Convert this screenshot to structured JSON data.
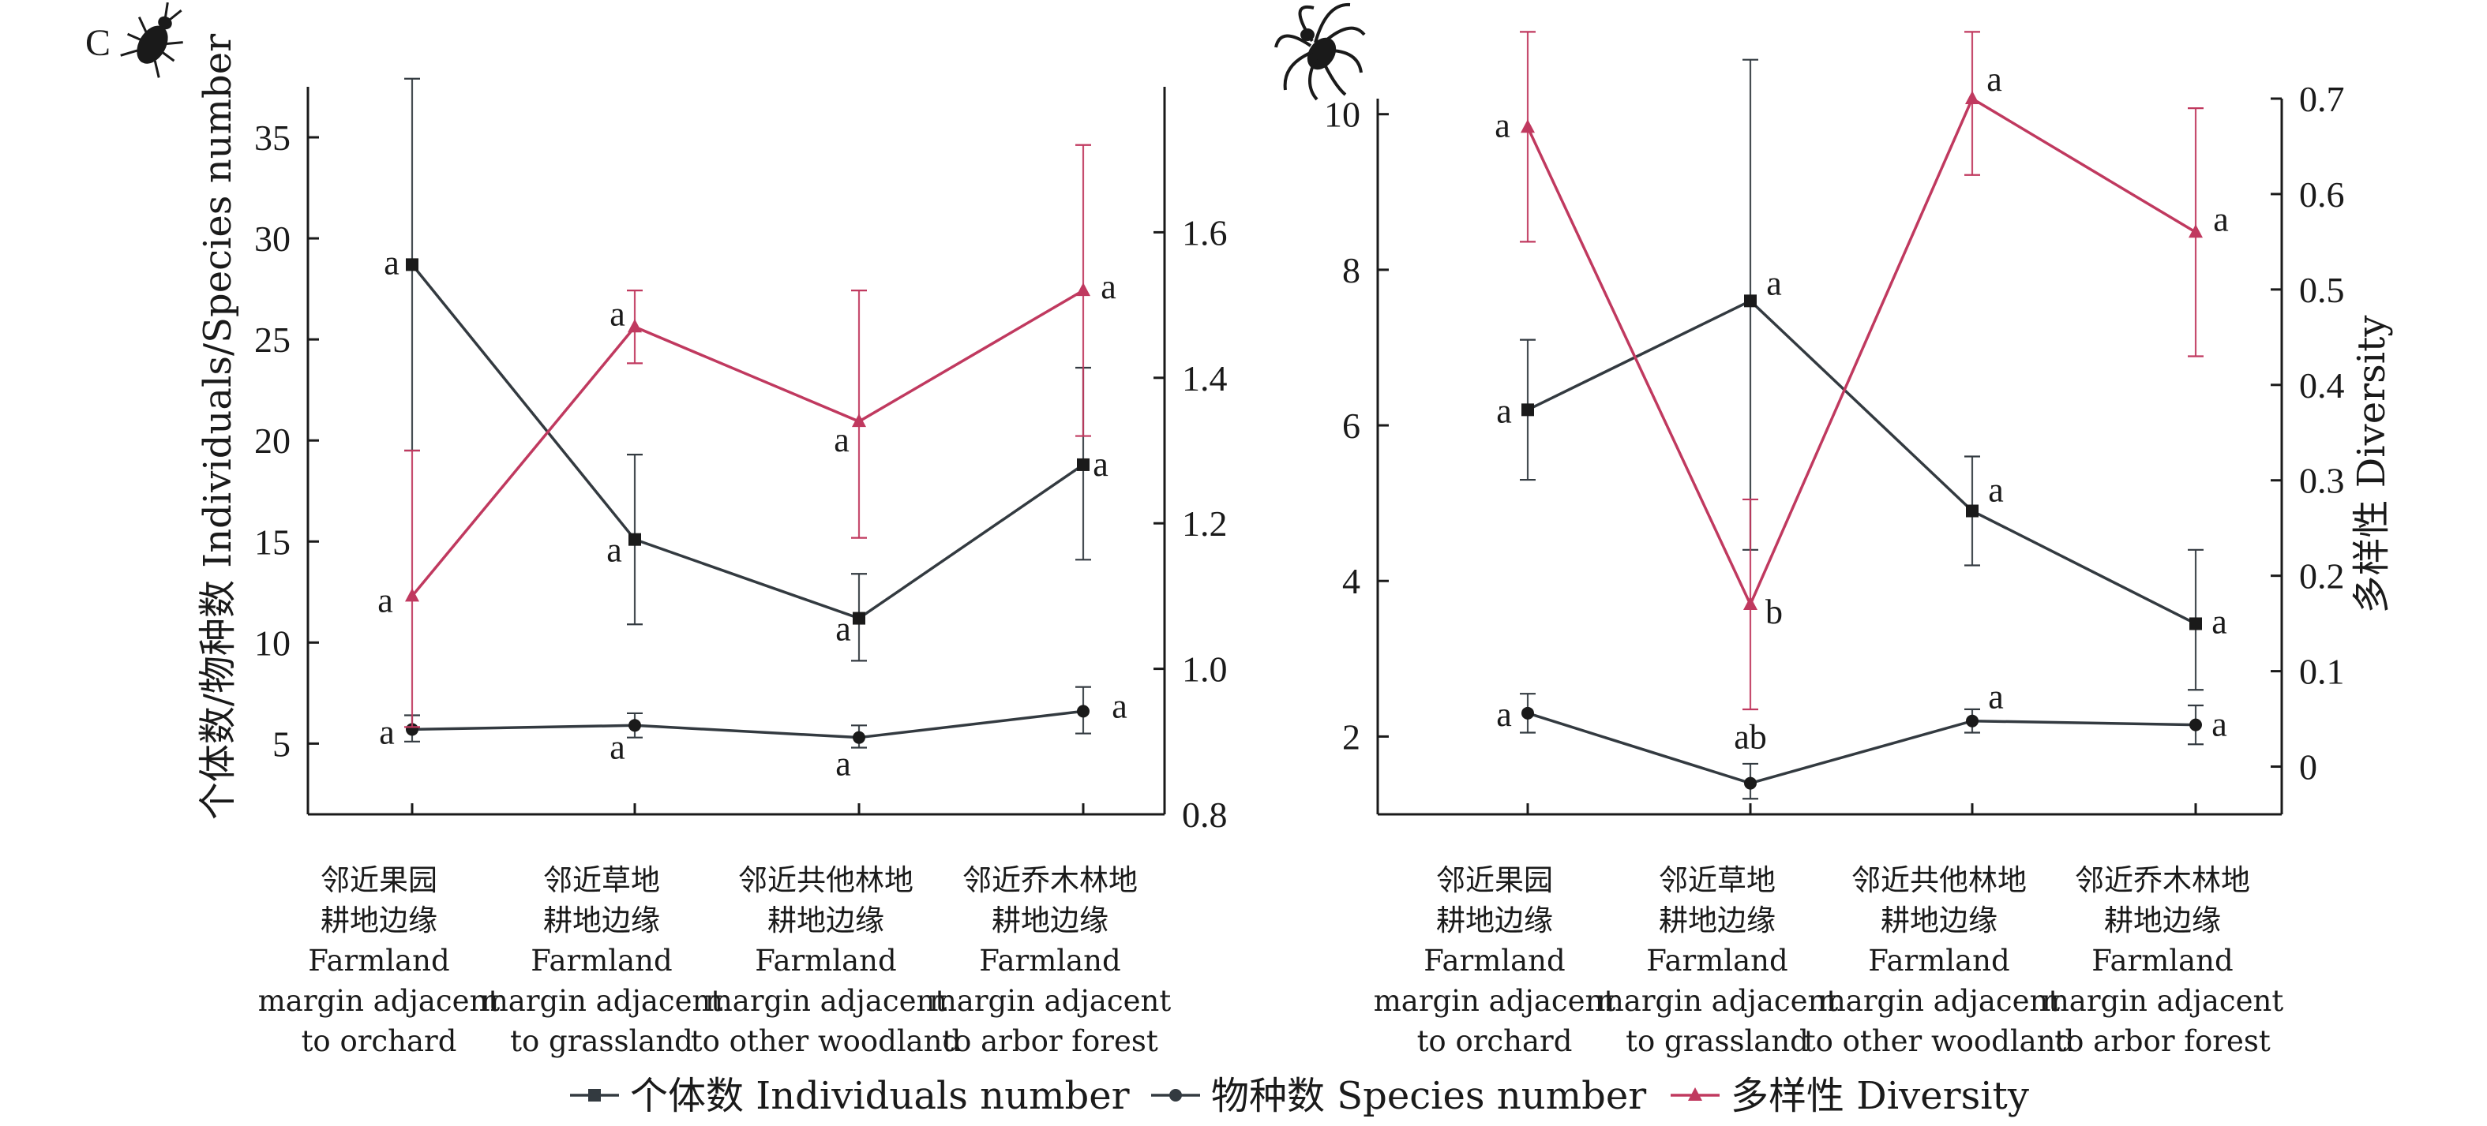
{
  "panel_letter": "C",
  "legend": [
    {
      "label": "个体数 Individuals number",
      "color": "#333a40",
      "marker": "square"
    },
    {
      "label": "物种数 Species number",
      "color": "#333a40",
      "marker": "circle"
    },
    {
      "label": "多样性 Diversity",
      "color": "#c0395f",
      "marker": "triangle"
    }
  ],
  "categories": [
    [
      "邻近果园",
      "耕地边缘",
      "Farmland",
      "margin adjacent",
      "to orchard"
    ],
    [
      "邻近草地",
      "耕地边缘",
      "Farmland",
      "margin adjacent",
      "to grassland"
    ],
    [
      "邻近共他林地",
      "耕地边缘",
      "Farmland",
      "margin adjacent",
      "to other woodland"
    ],
    [
      "邻近乔木林地",
      "耕地边缘",
      "Farmland",
      "margin adjacent",
      "to arbor forest"
    ]
  ],
  "chart_data": [
    {
      "type": "line",
      "icon": "beetle-icon",
      "ylabel": "个体数/物种数 Individuals/Species number",
      "y2label": "",
      "ylim": [
        1.5,
        37.5
      ],
      "yticks": [
        5,
        10,
        15,
        20,
        25,
        30,
        35
      ],
      "y2lim": [
        0.8,
        1.8
      ],
      "y2ticks": [
        0.8,
        1.0,
        1.2,
        1.4,
        1.6
      ],
      "series": [
        {
          "name": "个体数 Individuals number",
          "axis": "left",
          "marker": "square",
          "color": "#333a40",
          "values": [
            28.7,
            15.1,
            11.2,
            18.8
          ],
          "err_low": [
            19.5,
            10.9,
            9.1,
            14.1
          ],
          "err_high": [
            37.9,
            19.3,
            13.4,
            23.6
          ],
          "letters": [
            "a",
            "a",
            "a",
            "a"
          ]
        },
        {
          "name": "物种数 Species number",
          "axis": "left",
          "marker": "circle",
          "color": "#333a40",
          "values": [
            5.7,
            5.9,
            5.3,
            6.6
          ],
          "err_low": [
            5.1,
            5.3,
            4.8,
            5.5
          ],
          "err_high": [
            6.4,
            6.5,
            5.9,
            7.8
          ],
          "letters": [
            "a",
            "a",
            "a",
            "a"
          ]
        },
        {
          "name": "多样性 Diversity",
          "axis": "right",
          "marker": "triangle",
          "color": "#c0395f",
          "values": [
            1.1,
            1.47,
            1.34,
            1.52
          ],
          "err_low": [
            0.92,
            1.42,
            1.18,
            1.32
          ],
          "err_high": [
            1.3,
            1.52,
            1.52,
            1.72
          ],
          "letters": [
            "a",
            "a",
            "a",
            "a"
          ]
        }
      ]
    },
    {
      "type": "line",
      "icon": "spider-icon",
      "ylabel": "",
      "y2label": "多样性 Diversity",
      "ylim": [
        1.0,
        10.2
      ],
      "yticks": [
        2,
        4,
        6,
        8,
        10
      ],
      "y2lim": [
        -0.05,
        0.7
      ],
      "y2ticks": [
        0,
        0.1,
        0.2,
        0.3,
        0.4,
        0.5,
        0.6,
        0.7
      ],
      "series": [
        {
          "name": "个体数 Individuals number",
          "axis": "left",
          "marker": "square",
          "color": "#333a40",
          "values": [
            6.2,
            7.6,
            4.9,
            3.45
          ],
          "err_low": [
            5.3,
            4.4,
            4.2,
            2.6
          ],
          "err_high": [
            7.1,
            10.7,
            5.6,
            4.4
          ],
          "letters": [
            "a",
            "a",
            "a",
            "a"
          ]
        },
        {
          "name": "物种数 Species number",
          "axis": "left",
          "marker": "circle",
          "color": "#333a40",
          "values": [
            2.3,
            1.4,
            2.2,
            2.15
          ],
          "err_low": [
            2.05,
            1.2,
            2.05,
            1.9
          ],
          "err_high": [
            2.55,
            1.65,
            2.35,
            2.4
          ],
          "letters": [
            "a",
            "ab",
            "a",
            "a"
          ]
        },
        {
          "name": "多样性 Diversity",
          "axis": "right",
          "marker": "triangle",
          "color": "#c0395f",
          "values": [
            0.67,
            0.17,
            0.7,
            0.56
          ],
          "err_low": [
            0.55,
            0.06,
            0.62,
            0.43
          ],
          "err_high": [
            0.77,
            0.28,
            0.77,
            0.69
          ],
          "letters": [
            "a",
            "b",
            "a",
            "a"
          ]
        }
      ]
    }
  ]
}
